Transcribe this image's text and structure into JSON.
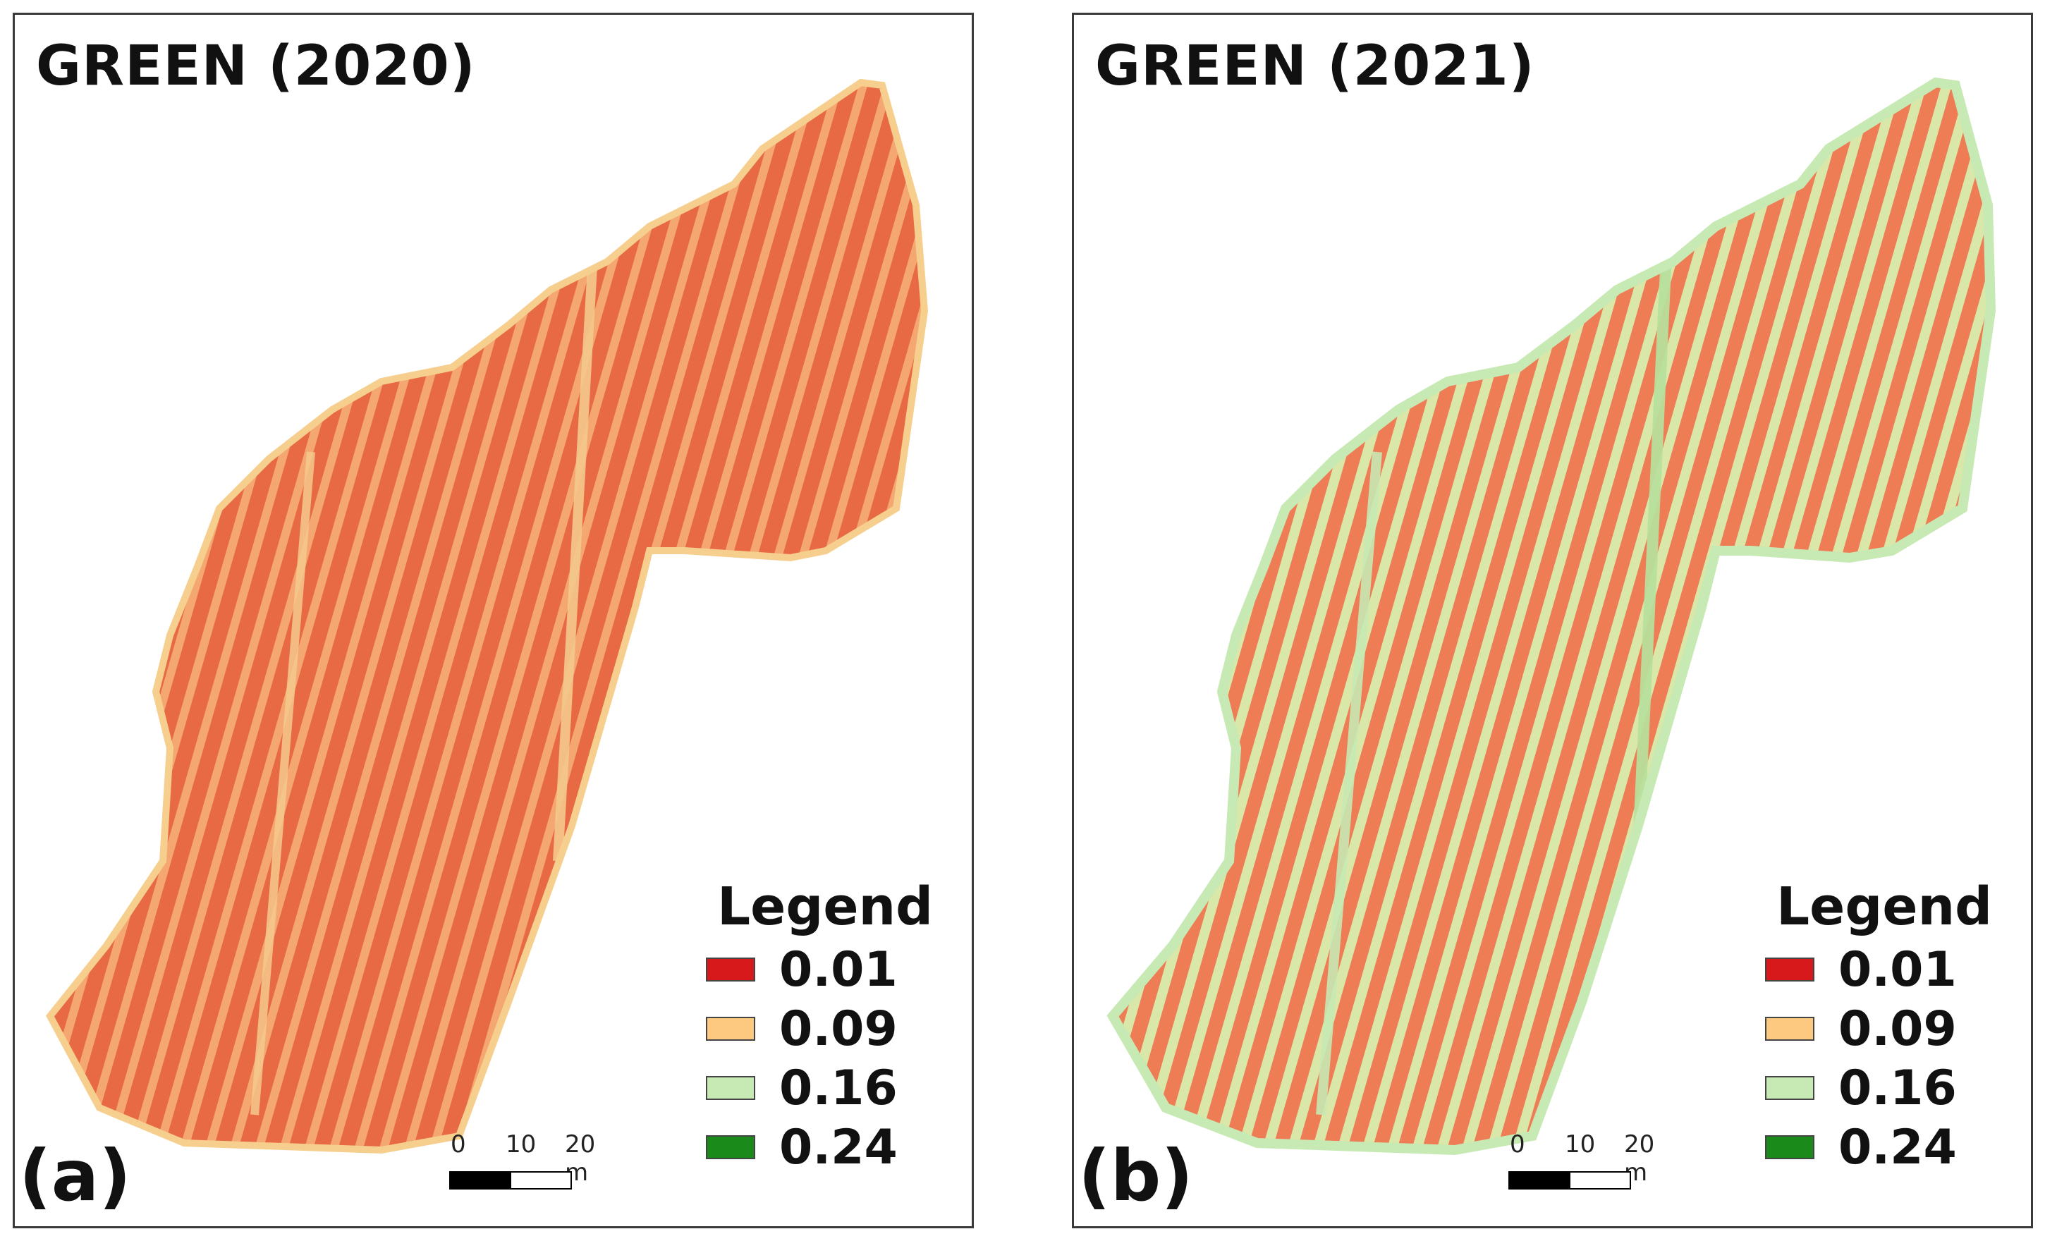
{
  "figure": {
    "legend_title": "Legend",
    "legend": [
      {
        "label": "0.01",
        "color": "#d7191c"
      },
      {
        "label": "0.09",
        "color": "#fdc980"
      },
      {
        "label": "0.16",
        "color": "#c7e9b4"
      },
      {
        "label": "0.24",
        "color": "#1a8a1a"
      }
    ],
    "scale": {
      "ticks": [
        "0",
        "10",
        "20 m"
      ]
    }
  },
  "panels": [
    {
      "title": "GREEN (2020)",
      "tag": "(a)",
      "base_color": "#f5a772",
      "row_color": "#e86a45"
    },
    {
      "title": "GREEN (2021)",
      "tag": "(b)",
      "base_color": "#d9e7a8",
      "row_color": "#ee7c55"
    }
  ]
}
